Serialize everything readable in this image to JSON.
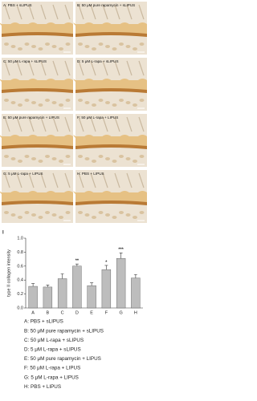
{
  "panels": [
    {
      "label": "A: PBS + sLIPUS"
    },
    {
      "label": "B: 50 μM pure rapamycin + sLIPUS"
    },
    {
      "label": "C: 50 μM L-rapa + sLIPUS"
    },
    {
      "label": "D: 5 μM L-rapa + sLIPUS"
    },
    {
      "label": "E: 50 μM pure rapamycin + LIPUS"
    },
    {
      "label": "F: 50 μM L-rapa + LIPUS"
    },
    {
      "label": "G: 5 μM L-rapa + LIPUS"
    },
    {
      "label": "H: PBS + LIPUS"
    }
  ],
  "chart_label": "I",
  "chart_data": {
    "type": "bar",
    "ylabel": "type II collagen intensity",
    "categories": [
      "A",
      "B",
      "C",
      "D",
      "E",
      "F",
      "G",
      "H"
    ],
    "values": [
      0.31,
      0.3,
      0.42,
      0.6,
      0.32,
      0.55,
      0.71,
      0.43
    ],
    "errors": [
      0.04,
      0.03,
      0.07,
      0.03,
      0.04,
      0.06,
      0.08,
      0.05
    ],
    "significance": [
      null,
      null,
      null,
      "**",
      null,
      "*",
      "***",
      null
    ],
    "color": "#bdbdbd",
    "ylim": [
      0,
      1.0
    ],
    "yticks": [
      {
        "value": 0,
        "label": "0.0"
      },
      0.2,
      0.4,
      0.6,
      0.8,
      {
        "value": 1.0,
        "label": "1.0"
      }
    ],
    "legend": [
      "A: PBS + sLIPUS",
      "B: 50 μM pure rapamycin + sLIPUS",
      "C: 50 μM L-rapa + sLIPUS",
      "D: 5 μM L-rapa + sLIPUS",
      "E: 50 μM pure rapamycin + LIPUS",
      "F: 50 μM L-rapa + LIPUS",
      "G: 5 μM L-rapa + LIPUS",
      "H: PBS + LIPUS"
    ]
  }
}
